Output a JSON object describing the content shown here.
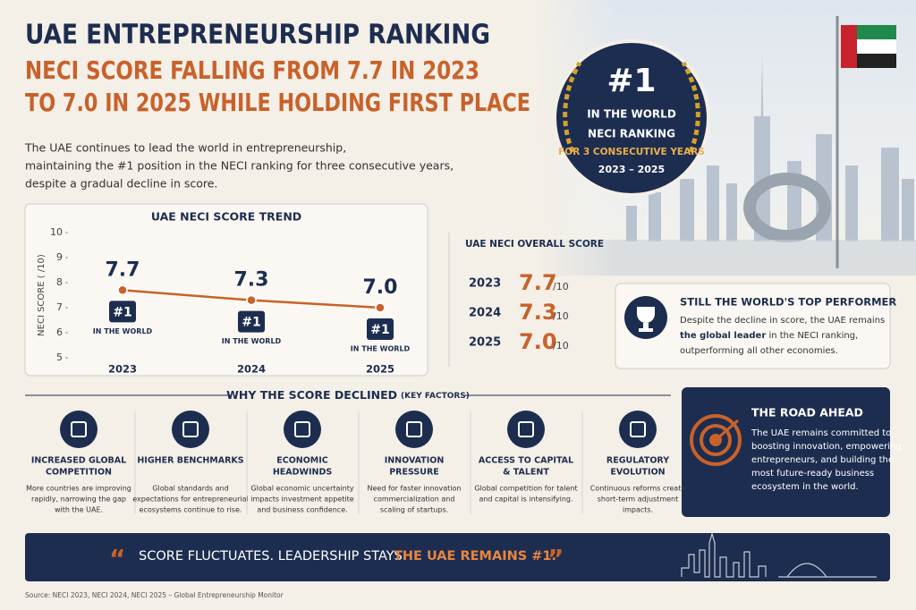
{
  "header": {
    "title": "UAE ENTREPRENEURSHIP RANKING",
    "subtitle": [
      "NECI SCORE FALLING FROM 7.7 IN 2023",
      "TO 7.0 IN 2025 WHILE HOLDING FIRST PLACE"
    ],
    "intro": [
      "The UAE continues to lead the world in entrepreneurship,",
      "maintaining the #1 position in the NECI ranking for three consecutive years,",
      "despite a gradual decline in score."
    ]
  },
  "badge": {
    "rank": "#1",
    "line1": "IN THE WORLD",
    "line2": "NECI RANKING",
    "line3": "FOR 3 CONSECUTIVE YEARS",
    "years": "2023 – 2025"
  },
  "chart_data": {
    "type": "line",
    "title": "UAE NECI SCORE TREND",
    "y_label": "NECI SCORE ( /10)",
    "categories": [
      "2023",
      "2024",
      "2025"
    ],
    "values": [
      7.7,
      7.3,
      7.0
    ],
    "value_labels": [
      "7.7",
      "7.3",
      "7.0"
    ],
    "color": "#c8622a",
    "ylim": [
      5,
      10
    ],
    "yticks": [
      5,
      6,
      7,
      8,
      9,
      10
    ],
    "point_annotations": [
      {
        "rank": "#1",
        "text": "IN THE WORLD"
      },
      {
        "rank": "#1",
        "text": "IN THE WORLD"
      },
      {
        "rank": "#1",
        "text": "IN THE WORLD"
      }
    ]
  },
  "overall": {
    "title": "UAE NECI OVERALL SCORE",
    "rows": [
      {
        "year": "2023",
        "score": "7.7",
        "unit": "/10"
      },
      {
        "year": "2024",
        "score": "7.3",
        "unit": "/10"
      },
      {
        "year": "2025",
        "score": "7.0",
        "unit": "/10"
      }
    ]
  },
  "top_performer": {
    "title": "STILL THE WORLD'S TOP PERFORMER",
    "line1": "Despite the decline in score, the UAE remains",
    "bold": "the global leader",
    "line2_rest": " in the NECI ranking,",
    "line3": "outperforming all other economies."
  },
  "factors": {
    "title": "WHY THE SCORE DECLINED",
    "note": "(KEY FACTORS)",
    "items": [
      {
        "title": [
          "INCREASED GLOBAL",
          "COMPETITION"
        ],
        "text": [
          "More countries are improving",
          "rapidly, narrowing the gap",
          "with the UAE."
        ]
      },
      {
        "title": [
          "HIGHER BENCHMARKS"
        ],
        "text": [
          "Global standards and",
          "expectations for entrepreneurial",
          "ecosystems continue to rise."
        ]
      },
      {
        "title": [
          "ECONOMIC",
          "HEADWINDS"
        ],
        "text": [
          "Global economic uncertainty",
          "impacts investment appetite",
          "and business confidence."
        ]
      },
      {
        "title": [
          "INNOVATION",
          "PRESSURE"
        ],
        "text": [
          "Need for faster innovation",
          "commercialization and",
          "scaling of startups."
        ]
      },
      {
        "title": [
          "ACCESS TO CAPITAL",
          "& TALENT"
        ],
        "text": [
          "Global competition for talent",
          "and capital is intensifying."
        ]
      },
      {
        "title": [
          "REGULATORY",
          "EVOLUTION"
        ],
        "text": [
          "Continuous reforms create",
          "short-term adjustment",
          "impacts."
        ]
      }
    ]
  },
  "road_ahead": {
    "title": "THE ROAD AHEAD",
    "text": [
      "The UAE remains committed to",
      "boosting innovation, empowering",
      "entrepreneurs, and building the",
      "most future-ready business",
      "ecosystem in the world."
    ]
  },
  "quote": {
    "open": "“",
    "text": "SCORE FLUCTUATES. LEADERSHIP STAYS.",
    "highlight": "THE UAE REMAINS #1.",
    "close": "”"
  },
  "source": "Source: NECI 2023, NECI 2024, NECI 2025 – Global Entrepreneurship Monitor"
}
